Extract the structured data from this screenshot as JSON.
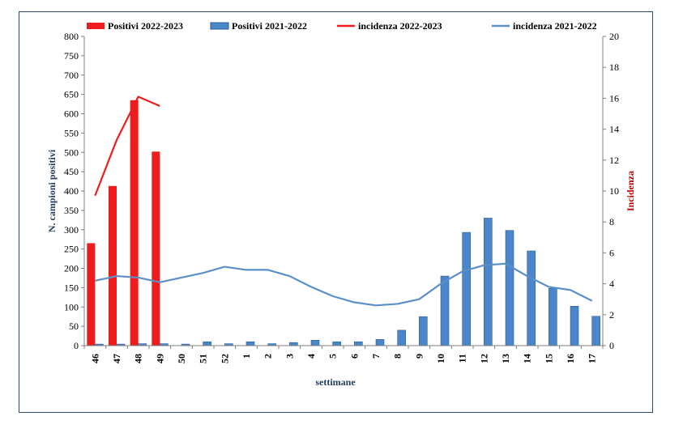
{
  "chart_data": {
    "type": "bar",
    "title": "",
    "xlabel": "settimane",
    "ylabel": "N. campioni positivi",
    "y2label": "Incidenza",
    "ylim": [
      0,
      800
    ],
    "y2lim": [
      0,
      20
    ],
    "yticks": [
      0,
      50,
      100,
      150,
      200,
      250,
      300,
      350,
      400,
      450,
      500,
      550,
      600,
      650,
      700,
      750,
      800
    ],
    "y2ticks": [
      0,
      2,
      4,
      6,
      8,
      10,
      12,
      14,
      16,
      18,
      20
    ],
    "categories": [
      "46",
      "47",
      "48",
      "49",
      "50",
      "51",
      "52",
      "1",
      "2",
      "3",
      "4",
      "5",
      "6",
      "7",
      "8",
      "9",
      "10",
      "11",
      "12",
      "13",
      "14",
      "15",
      "16",
      "17"
    ],
    "legend_position": "top",
    "series": [
      {
        "name": "Positivi 2022-2023",
        "kind": "bar",
        "axis": "left",
        "color": "#ee1c1c",
        "values": [
          265,
          413,
          635,
          502,
          null,
          null,
          null,
          null,
          null,
          null,
          null,
          null,
          null,
          null,
          null,
          null,
          null,
          null,
          null,
          null,
          null,
          null,
          null,
          null
        ]
      },
      {
        "name": "Positivi 2021-2022",
        "kind": "bar",
        "axis": "left",
        "color": "#4a86c8",
        "values": [
          4,
          4,
          5,
          5,
          4,
          10,
          5,
          10,
          5,
          8,
          14,
          10,
          10,
          16,
          40,
          75,
          180,
          293,
          330,
          298,
          245,
          148,
          102,
          76
        ]
      },
      {
        "name": "incidenza 2022-2023",
        "kind": "line",
        "axis": "right",
        "color": "#ee1c1c",
        "values": [
          9.7,
          13.3,
          16.1,
          15.5,
          null,
          null,
          null,
          null,
          null,
          null,
          null,
          null,
          null,
          null,
          null,
          null,
          null,
          null,
          null,
          null,
          null,
          null,
          null,
          null
        ]
      },
      {
        "name": "incidenza 2021-2022",
        "kind": "line",
        "axis": "right",
        "color": "#5b8fc7",
        "values": [
          4.2,
          4.5,
          4.4,
          4.1,
          4.4,
          4.7,
          5.1,
          4.9,
          4.9,
          4.5,
          3.8,
          3.2,
          2.8,
          2.6,
          2.7,
          3.0,
          4.0,
          4.8,
          5.2,
          5.3,
          4.5,
          3.8,
          3.6,
          2.9
        ]
      }
    ]
  }
}
